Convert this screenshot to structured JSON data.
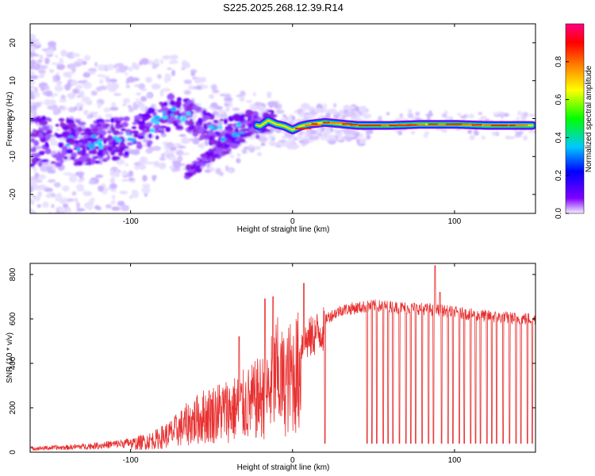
{
  "chart_data": [
    {
      "type": "heatmap",
      "title": "S225.2025.268.12.39.R14",
      "xlabel": "Height of straight line (km)",
      "ylabel": "Frequency (Hz)",
      "xlim": [
        -162,
        150
      ],
      "ylim": [
        -25,
        25
      ],
      "xticks": [
        -100,
        0,
        100
      ],
      "xtick_labels": [
        "-100",
        "0",
        "100"
      ],
      "yticks": [
        -20,
        -10,
        0,
        10,
        20
      ],
      "ytick_labels": [
        "-20",
        "-10",
        "0",
        "10",
        "20"
      ],
      "colorbar": {
        "label": "Normalized spectral amplitude",
        "range": [
          0,
          1
        ],
        "ticks": [
          0,
          0.2,
          0.4,
          0.6,
          0.8
        ],
        "tick_labels": [
          "0.0",
          "0.2",
          "0.4",
          "0.6",
          "0.8"
        ],
        "colors": [
          "#f4f0ff",
          "#8000ff",
          "#0000ff",
          "#00c8ff",
          "#00ff00",
          "#ffff00",
          "#ff8000",
          "#ff0000",
          "#ff0080"
        ]
      },
      "ridge": {
        "x": [
          -150,
          -130,
          -110,
          -95,
          -82,
          -75,
          -65,
          -55,
          -45,
          -35,
          -28,
          -20,
          -15,
          -10,
          -5,
          0,
          5,
          10,
          20,
          40,
          60,
          80,
          100,
          120,
          145
        ],
        "y": [
          -6,
          -6.5,
          -5.5,
          -4,
          0,
          2,
          1,
          -2,
          -4,
          -3,
          -1,
          -2,
          -0.5,
          -1.5,
          -2,
          -3,
          -2,
          -1.5,
          -1,
          -1.8,
          -1.8,
          -1.5,
          -1.5,
          -1.8,
          -1.8
        ]
      }
    },
    {
      "type": "line",
      "xlabel": "Height of straight line (km)",
      "ylabel": "SNR (10 * v/v)",
      "xlim": [
        -162,
        150
      ],
      "ylim": [
        0,
        850
      ],
      "xticks": [
        -100,
        0,
        100
      ],
      "xtick_labels": [
        "-100",
        "0",
        "100"
      ],
      "yticks": [
        0,
        200,
        400,
        600,
        800
      ],
      "ytick_labels": [
        "0",
        "200",
        "400",
        "600",
        "800"
      ],
      "color": "#e83030",
      "envelope": {
        "x": [
          -162,
          -140,
          -120,
          -100,
          -85,
          -75,
          -65,
          -55,
          -45,
          -35,
          -25,
          -15,
          -10,
          -5,
          0,
          5,
          10,
          15,
          20,
          30,
          50,
          70,
          90,
          110,
          130,
          150
        ],
        "y": [
          20,
          25,
          35,
          50,
          80,
          120,
          180,
          230,
          260,
          280,
          320,
          380,
          500,
          430,
          500,
          520,
          550,
          580,
          600,
          640,
          660,
          650,
          640,
          620,
          605,
          600
        ]
      },
      "dropouts_x": [
        20,
        46,
        49,
        52,
        56,
        59,
        62,
        66,
        70,
        73,
        76,
        80,
        84,
        87,
        92,
        96,
        99,
        103,
        106,
        110,
        113,
        116,
        120,
        123,
        126,
        130,
        134,
        138,
        141,
        145,
        148
      ],
      "spikes": [
        {
          "x": -33,
          "y": 520
        },
        {
          "x": -17,
          "y": 690
        },
        {
          "x": -12,
          "y": 700
        },
        {
          "x": 7,
          "y": 760
        },
        {
          "x": 88,
          "y": 840
        },
        {
          "x": 91,
          "y": 720
        }
      ]
    }
  ]
}
